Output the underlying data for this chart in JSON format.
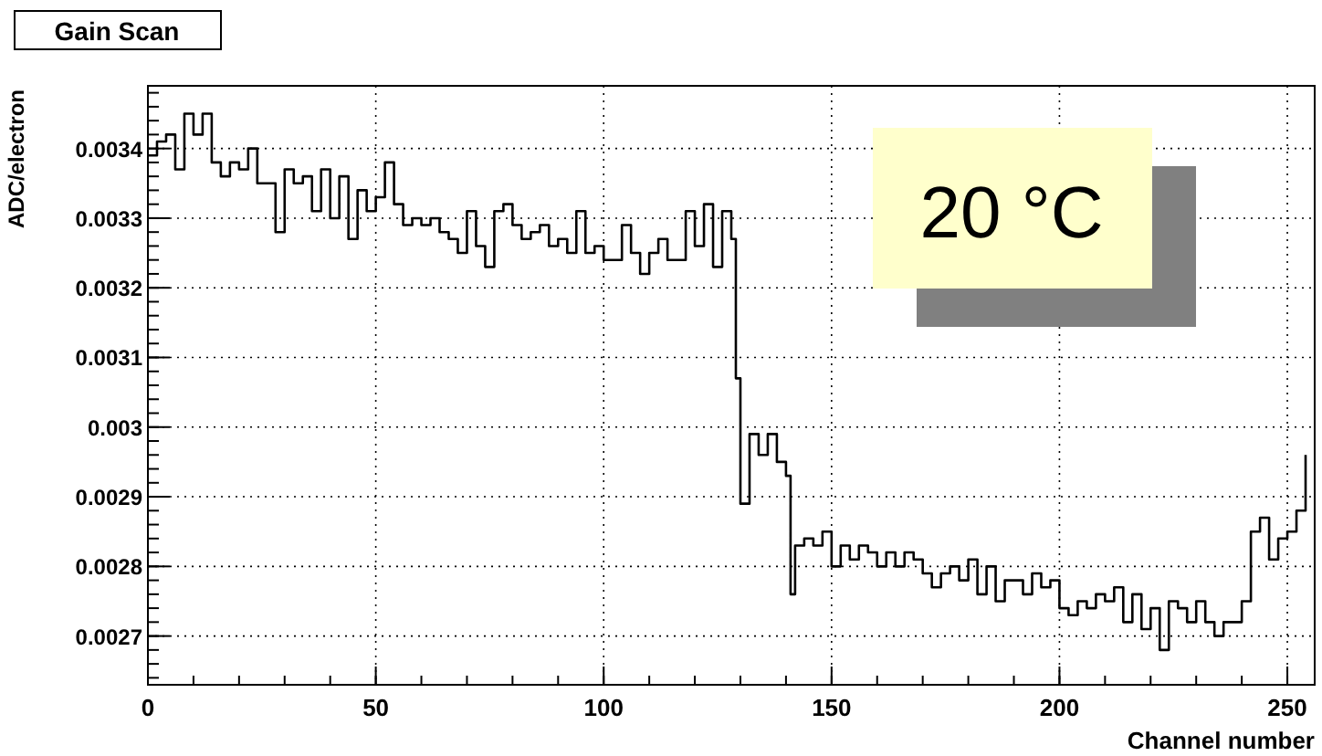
{
  "chart_data": {
    "type": "step",
    "title": "Gain Scan",
    "xlabel": "Channel number",
    "ylabel": "ADC/electron",
    "annotations": [
      "20 °C"
    ],
    "x": [
      0,
      2,
      4,
      6,
      8,
      10,
      12,
      14,
      16,
      18,
      20,
      22,
      24,
      26,
      28,
      30,
      32,
      34,
      36,
      38,
      40,
      42,
      44,
      46,
      48,
      50,
      52,
      54,
      56,
      58,
      60,
      62,
      64,
      66,
      68,
      70,
      72,
      74,
      76,
      78,
      80,
      82,
      84,
      86,
      88,
      90,
      92,
      94,
      96,
      98,
      100,
      102,
      104,
      106,
      108,
      110,
      112,
      114,
      116,
      118,
      120,
      122,
      124,
      126,
      128,
      129,
      130,
      132,
      134,
      136,
      138,
      140,
      141,
      142,
      144,
      146,
      148,
      150,
      152,
      154,
      156,
      158,
      160,
      162,
      164,
      166,
      168,
      170,
      172,
      174,
      176,
      178,
      180,
      182,
      184,
      186,
      188,
      190,
      192,
      194,
      196,
      198,
      200,
      202,
      204,
      206,
      208,
      210,
      212,
      214,
      216,
      218,
      220,
      222,
      224,
      226,
      228,
      230,
      232,
      234,
      236,
      238,
      240,
      242,
      244,
      246,
      248,
      250,
      252,
      254
    ],
    "values": [
      0.00339,
      0.00341,
      0.00342,
      0.00337,
      0.00345,
      0.00342,
      0.00345,
      0.00338,
      0.00336,
      0.00338,
      0.00337,
      0.0034,
      0.00335,
      0.00335,
      0.00328,
      0.00337,
      0.00335,
      0.00336,
      0.00331,
      0.00337,
      0.0033,
      0.00336,
      0.00327,
      0.00334,
      0.00331,
      0.00333,
      0.00338,
      0.00332,
      0.00329,
      0.0033,
      0.00329,
      0.0033,
      0.00328,
      0.00327,
      0.00325,
      0.00331,
      0.00326,
      0.00323,
      0.00331,
      0.00332,
      0.00329,
      0.00327,
      0.00328,
      0.00329,
      0.00326,
      0.00327,
      0.00325,
      0.00331,
      0.00325,
      0.00326,
      0.00324,
      0.00324,
      0.00329,
      0.00325,
      0.00322,
      0.00325,
      0.00327,
      0.00324,
      0.00324,
      0.00331,
      0.00326,
      0.00332,
      0.00323,
      0.00331,
      0.00327,
      0.00307,
      0.00289,
      0.00299,
      0.00296,
      0.00299,
      0.00295,
      0.00293,
      0.00276,
      0.00283,
      0.00284,
      0.00283,
      0.00285,
      0.0028,
      0.00283,
      0.00281,
      0.00283,
      0.00282,
      0.0028,
      0.00282,
      0.0028,
      0.00282,
      0.00281,
      0.00279,
      0.00277,
      0.00279,
      0.0028,
      0.00278,
      0.00281,
      0.00276,
      0.0028,
      0.00275,
      0.00278,
      0.00278,
      0.00276,
      0.00279,
      0.00277,
      0.00278,
      0.00274,
      0.00273,
      0.00275,
      0.00274,
      0.00276,
      0.00275,
      0.00277,
      0.00272,
      0.00276,
      0.00271,
      0.00274,
      0.00268,
      0.00275,
      0.00274,
      0.00272,
      0.00275,
      0.00272,
      0.0027,
      0.00272,
      0.00272,
      0.00275,
      0.00285,
      0.00287,
      0.00281,
      0.00284,
      0.00285,
      0.00288,
      0.00296
    ],
    "color": "#000000",
    "xlim": [
      0,
      256
    ],
    "ylim": [
      0.00263,
      0.00349
    ],
    "xticks": [
      0,
      50,
      100,
      150,
      200,
      250
    ],
    "yticks": [
      0.0027,
      0.0028,
      0.0029,
      0.003,
      0.0031,
      0.0032,
      0.0033,
      0.0034
    ],
    "grid": true,
    "line_style": "solid"
  }
}
